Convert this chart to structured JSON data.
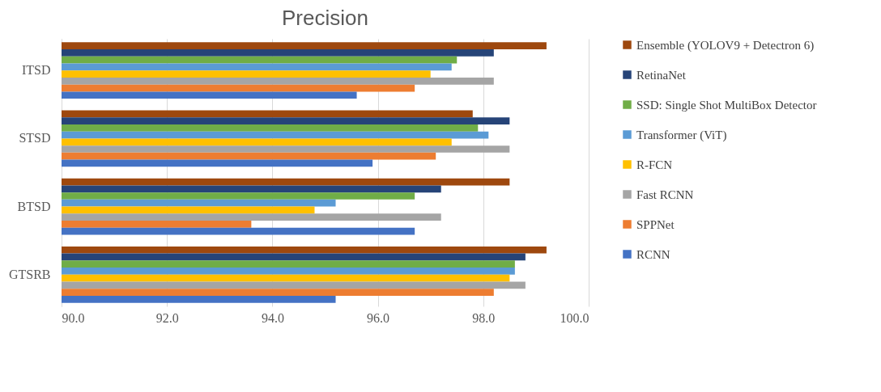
{
  "chart_data": {
    "type": "bar",
    "orientation": "horizontal",
    "title": "Precision",
    "categories": [
      "ITSD",
      "STSD",
      "BTSD",
      "GTSRB"
    ],
    "series": [
      {
        "name": "Ensemble (YOLOV9 + Detectron 6)",
        "color": "#9e480e",
        "values": [
          99.2,
          97.8,
          98.5,
          99.2
        ]
      },
      {
        "name": "RetinaNet",
        "color": "#264478",
        "values": [
          98.2,
          98.5,
          97.2,
          98.8
        ]
      },
      {
        "name": "SSD: Single Shot MultiBox Detector",
        "color": "#70ad47",
        "values": [
          97.5,
          97.9,
          96.7,
          98.6
        ]
      },
      {
        "name": "Transformer (ViT)",
        "color": "#5b9bd5",
        "values": [
          97.4,
          98.1,
          95.2,
          98.6
        ]
      },
      {
        "name": "R-FCN",
        "color": "#ffc000",
        "values": [
          97.0,
          97.4,
          94.8,
          98.5
        ]
      },
      {
        "name": "Fast RCNN",
        "color": "#a5a5a5",
        "values": [
          98.2,
          98.5,
          97.2,
          98.8
        ]
      },
      {
        "name": "SPPNet",
        "color": "#ed7d31",
        "values": [
          96.7,
          97.1,
          93.6,
          98.2
        ]
      },
      {
        "name": "RCNN",
        "color": "#4472c4",
        "values": [
          95.6,
          95.9,
          96.7,
          95.2
        ]
      }
    ],
    "xlim": [
      90,
      100
    ],
    "xticks": [
      {
        "value": 90,
        "label": "90.0"
      },
      {
        "value": 92,
        "label": "92.0"
      },
      {
        "value": 94,
        "label": "94.0"
      },
      {
        "value": 96,
        "label": "96.0"
      },
      {
        "value": 98,
        "label": "98.0"
      },
      {
        "value": 100,
        "label": "100.0"
      }
    ],
    "grid": "x",
    "legend": "right"
  }
}
